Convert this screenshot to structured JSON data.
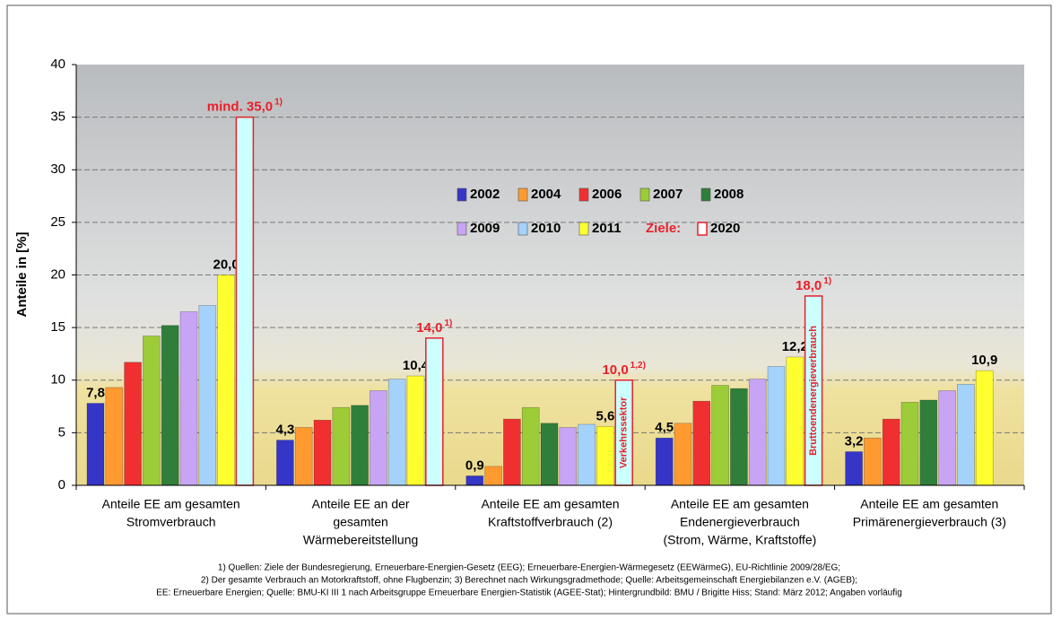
{
  "chart_data": {
    "type": "bar",
    "ylabel": "Anteile in [%]",
    "categories": [
      [
        "Anteile EE am gesamten",
        "Stromverbrauch"
      ],
      [
        "Anteile EE an der",
        "gesamten",
        "Wärmebereitstellung"
      ],
      [
        "Anteile EE am gesamten",
        "Kraftstoffverbrauch (2)"
      ],
      [
        "Anteile EE am gesamten",
        "Endenergieverbrauch",
        "(Strom, Wärme, Kraftstoffe)"
      ],
      [
        "Anteile EE am gesamten",
        "Primärenergieverbrauch (3)"
      ]
    ],
    "series": [
      {
        "name": "2002",
        "color": "#3535c8",
        "values": [
          7.8,
          4.3,
          0.9,
          4.5,
          3.2
        ],
        "value_labels": [
          "7,8",
          "4,3",
          "0,9",
          "4,5",
          "3,2"
        ]
      },
      {
        "name": "2004",
        "color": "#ff9a30",
        "values": [
          9.3,
          5.5,
          1.8,
          5.9,
          4.5
        ]
      },
      {
        "name": "2006",
        "color": "#f03030",
        "values": [
          11.7,
          6.2,
          6.3,
          8.0,
          6.3
        ]
      },
      {
        "name": "2007",
        "color": "#9ccc38",
        "values": [
          14.2,
          7.4,
          7.4,
          9.5,
          7.9
        ]
      },
      {
        "name": "2008",
        "color": "#2f7f3a",
        "values": [
          15.2,
          7.6,
          5.9,
          9.2,
          8.1
        ]
      },
      {
        "name": "2009",
        "color": "#c8a4f4",
        "values": [
          16.5,
          9.0,
          5.5,
          10.1,
          9.0
        ]
      },
      {
        "name": "2010",
        "color": "#a4d2fa",
        "values": [
          17.1,
          10.1,
          5.8,
          11.3,
          9.6
        ]
      },
      {
        "name": "2011",
        "color": "#ffff30",
        "values": [
          20.0,
          10.4,
          5.6,
          12.2,
          10.9
        ],
        "value_labels": [
          "20,0",
          "10,4",
          "5,6",
          "12,2",
          "10,9"
        ]
      },
      {
        "name": "2020",
        "color": "#ccffff",
        "edgecolor": "#e8202a",
        "values": [
          35.0,
          14.0,
          10.0,
          18.0,
          null
        ],
        "value_labels": [
          "mind. 35,0",
          "14,0",
          "10,0",
          "18,0",
          null
        ],
        "value_label_notes": [
          "1)",
          "1)",
          "1,2)",
          "1)",
          null
        ],
        "bar_annotations": [
          null,
          null,
          "Verkehrssektor",
          "Bruttoendenergieverbrauch",
          null
        ]
      }
    ],
    "legend_prefix": "Ziele:",
    "ylim": [
      0,
      40
    ],
    "yticks": [
      0,
      5,
      10,
      15,
      20,
      25,
      30,
      35,
      40
    ],
    "grid": true,
    "footnotes": [
      "1) Quellen: Ziele der Bundesregierung, Erneuerbare-Energien-Gesetz (EEG); Erneuerbare-Energien-Wärmegesetz (EEWärmeG), EU-Richtlinie 2009/28/EG;",
      "2) Der gesamte Verbrauch an Motorkraftstoff, ohne Flugbenzin; 3) Berechnet nach Wirkungsgradmethode; Quelle: Arbeitsgemeinschaft Energiebilanzen e.V. (AGEB);",
      "EE: Erneuerbare Energien; Quelle: BMU-KI III 1 nach Arbeitsgruppe Erneuerbare Energien-Statistik (AGEE-Stat); Hintergrundbild: BMU / Brigitte Hiss; Stand: März 2012; Angaben vorläufig"
    ]
  }
}
